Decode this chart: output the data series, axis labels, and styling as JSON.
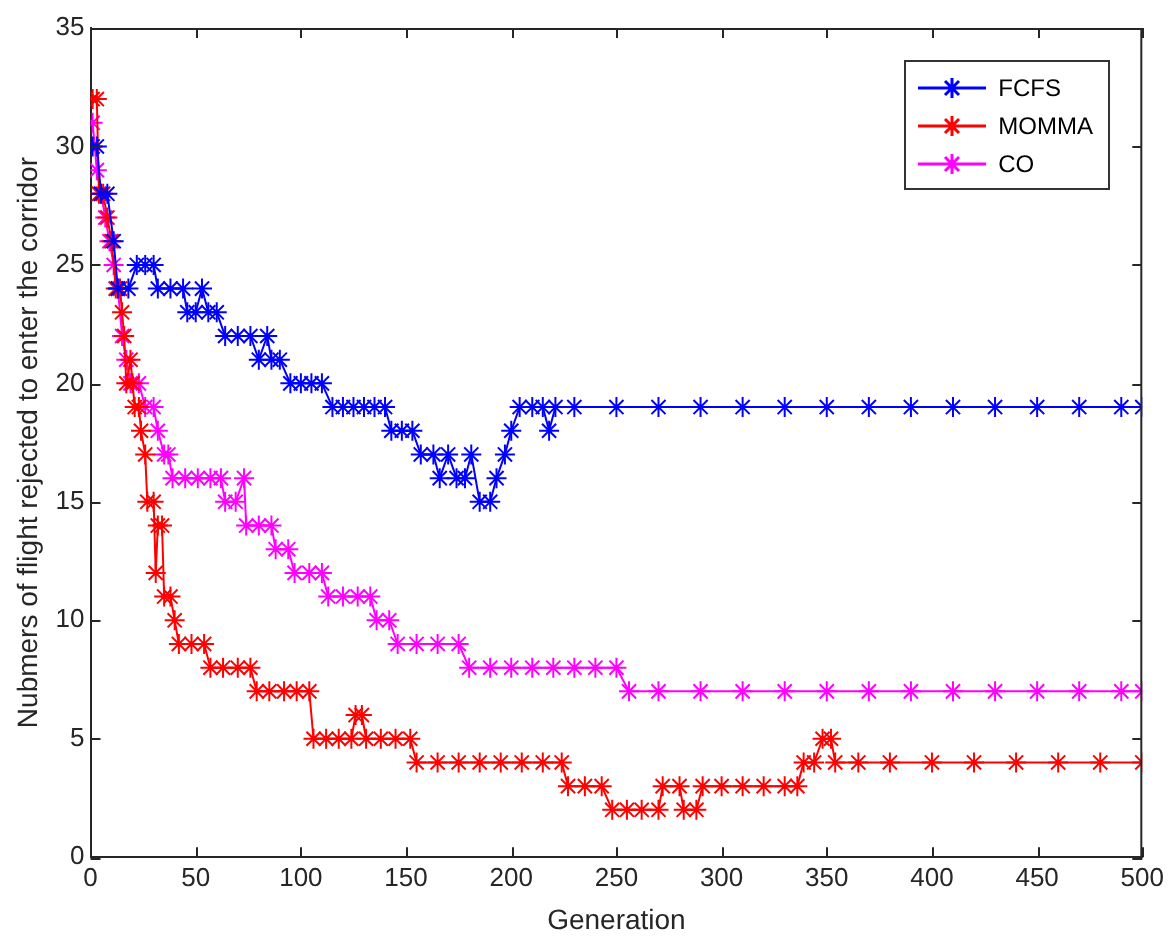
{
  "chart_data": {
    "type": "line",
    "xlabel": "Generation",
    "ylabel": "Nubmers of flight rejected to enter the corridor",
    "xlim": [
      0,
      500
    ],
    "xticks": [
      0,
      50,
      100,
      150,
      200,
      250,
      300,
      350,
      400,
      450,
      500
    ],
    "ylim": [
      0,
      35
    ],
    "yticks": [
      0,
      5,
      10,
      15,
      20,
      25,
      30,
      35
    ],
    "grid": false,
    "legend": "top right",
    "marker": "cross",
    "line_style": "solid",
    "series": [
      {
        "name": "FCFS",
        "color": "#0000ff",
        "x": [
          1,
          3,
          5,
          8,
          11,
          13,
          18,
          22,
          26,
          30,
          32,
          38,
          44,
          46,
          50,
          53,
          56,
          60,
          64,
          70,
          76,
          80,
          84,
          86,
          90,
          95,
          100,
          105,
          110,
          115,
          120,
          125,
          130,
          135,
          140,
          143,
          148,
          153,
          157,
          163,
          166,
          170,
          174,
          178,
          181,
          185,
          190,
          193,
          197,
          200,
          204,
          210,
          215,
          218,
          221,
          230,
          250,
          270,
          290,
          310,
          330,
          350,
          370,
          390,
          410,
          430,
          450,
          470,
          490,
          500
        ],
        "values": [
          30,
          30,
          28,
          28,
          26,
          24,
          24,
          25,
          25,
          25,
          24,
          24,
          24,
          23,
          23,
          24,
          23,
          23,
          22,
          22,
          22,
          21,
          22,
          21,
          21,
          20,
          20,
          20,
          20,
          19,
          19,
          19,
          19,
          19,
          19,
          18,
          18,
          18,
          17,
          17,
          16,
          17,
          16,
          16,
          17,
          15,
          15,
          16,
          17,
          18,
          19,
          19,
          19,
          18,
          19,
          19,
          19,
          19,
          19,
          19,
          19,
          19,
          19,
          19,
          19,
          19,
          19,
          19,
          19,
          19
        ]
      },
      {
        "name": "MOMMA",
        "color": "#ff0000",
        "x": [
          1,
          3,
          4,
          6,
          8,
          10,
          12,
          14,
          15,
          16,
          17,
          19,
          20,
          21,
          23,
          24,
          26,
          27,
          30,
          31,
          32,
          34,
          35,
          38,
          40,
          42,
          48,
          54,
          57,
          63,
          70,
          76,
          79,
          85,
          92,
          98,
          104,
          106,
          112,
          118,
          124,
          126,
          129,
          131,
          138,
          145,
          152,
          155,
          165,
          175,
          185,
          195,
          205,
          215,
          224,
          227,
          235,
          243,
          248,
          255,
          262,
          270,
          272,
          280,
          282,
          288,
          291,
          300,
          310,
          320,
          330,
          336,
          339,
          344,
          348,
          352,
          354,
          365,
          380,
          400,
          420,
          440,
          460,
          480,
          500
        ],
        "values": [
          32,
          32,
          28,
          28,
          27,
          26,
          24,
          24,
          23,
          22,
          20,
          21,
          20,
          19,
          19,
          18,
          17,
          15,
          15,
          12,
          14,
          14,
          11,
          11,
          10,
          9,
          9,
          9,
          8,
          8,
          8,
          8,
          7,
          7,
          7,
          7,
          7,
          5,
          5,
          5,
          5,
          6,
          6,
          5,
          5,
          5,
          5,
          4,
          4,
          4,
          4,
          4,
          4,
          4,
          4,
          3,
          3,
          3,
          2,
          2,
          2,
          2,
          3,
          3,
          2,
          2,
          3,
          3,
          3,
          3,
          3,
          3,
          4,
          4,
          5,
          5,
          4,
          4,
          4,
          4,
          4,
          4,
          4,
          4,
          4
        ]
      },
      {
        "name": "CO",
        "color": "#ff00ff",
        "x": [
          1,
          3,
          5,
          7,
          9,
          11,
          13,
          15,
          17,
          19,
          23,
          26,
          30,
          32,
          35,
          37,
          39,
          45,
          51,
          57,
          62,
          64,
          69,
          73,
          74,
          80,
          86,
          88,
          94,
          97,
          104,
          110,
          113,
          120,
          127,
          133,
          136,
          142,
          146,
          155,
          165,
          175,
          180,
          190,
          200,
          210,
          220,
          230,
          240,
          250,
          256,
          270,
          290,
          310,
          330,
          350,
          370,
          390,
          410,
          430,
          450,
          470,
          490,
          500
        ],
        "values": [
          31,
          29,
          28,
          27,
          26,
          25,
          24,
          22,
          21,
          20,
          20,
          19,
          19,
          18,
          17,
          17,
          16,
          16,
          16,
          16,
          16,
          15,
          15,
          16,
          14,
          14,
          14,
          13,
          13,
          12,
          12,
          12,
          11,
          11,
          11,
          11,
          10,
          10,
          9,
          9,
          9,
          9,
          8,
          8,
          8,
          8,
          8,
          8,
          8,
          8,
          7,
          7,
          7,
          7,
          7,
          7,
          7,
          7,
          7,
          7,
          7,
          7,
          7,
          7
        ]
      }
    ]
  }
}
